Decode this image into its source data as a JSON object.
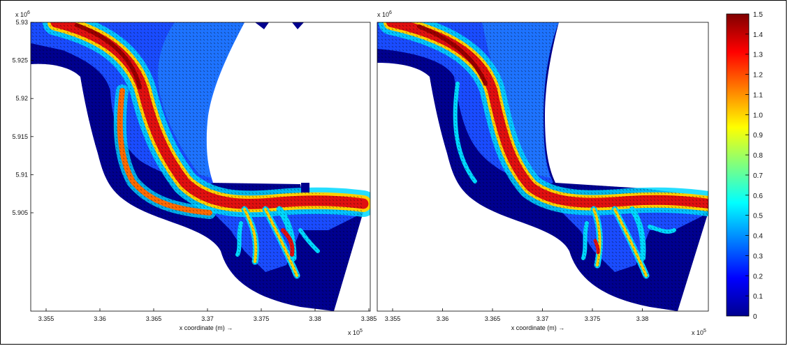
{
  "chart_data": [
    {
      "type": "heatmap",
      "title": "",
      "xlabel": "x coordinate (m) →",
      "ylabel": "",
      "x_scale_label": "x 10",
      "x_scale_exp": "5",
      "y_scale_label": "x 10",
      "y_scale_exp": "6",
      "x_ticks": [
        "3.355",
        "3.36",
        "3.365",
        "3.37",
        "3.375",
        "3.38",
        "3.385"
      ],
      "y_ticks": [
        "5.93",
        "5.925",
        "5.92",
        "5.915",
        "5.91",
        "5.905"
      ],
      "xlim": [
        335250,
        338500
      ],
      "ylim": [
        5902100,
        5930000
      ],
      "grid": false,
      "colormap": "jet"
    },
    {
      "type": "heatmap",
      "title": "",
      "xlabel": "x coordinate (m) →",
      "ylabel": "",
      "x_scale_label": "x 10",
      "x_scale_exp": "5",
      "y_scale_label": "x 10",
      "y_scale_exp": "6",
      "x_ticks": [
        "3.355",
        "3.36",
        "3.365",
        "3.37",
        "3.375",
        "3.38"
      ],
      "y_ticks": [],
      "xlim": [
        335250,
        338500
      ],
      "ylim": [
        5902100,
        5930000
      ],
      "grid": false,
      "colormap": "jet"
    }
  ],
  "colorbar": {
    "ticks": [
      "1.5",
      "1.4",
      "1.3",
      "1.2",
      "1.1",
      "1.0",
      "0.9",
      "0.8",
      "0.7",
      "0.6",
      "0.5",
      "0.4",
      "0.3",
      "0.2",
      "0.1",
      "0"
    ],
    "min": 0,
    "max": 1.5
  }
}
